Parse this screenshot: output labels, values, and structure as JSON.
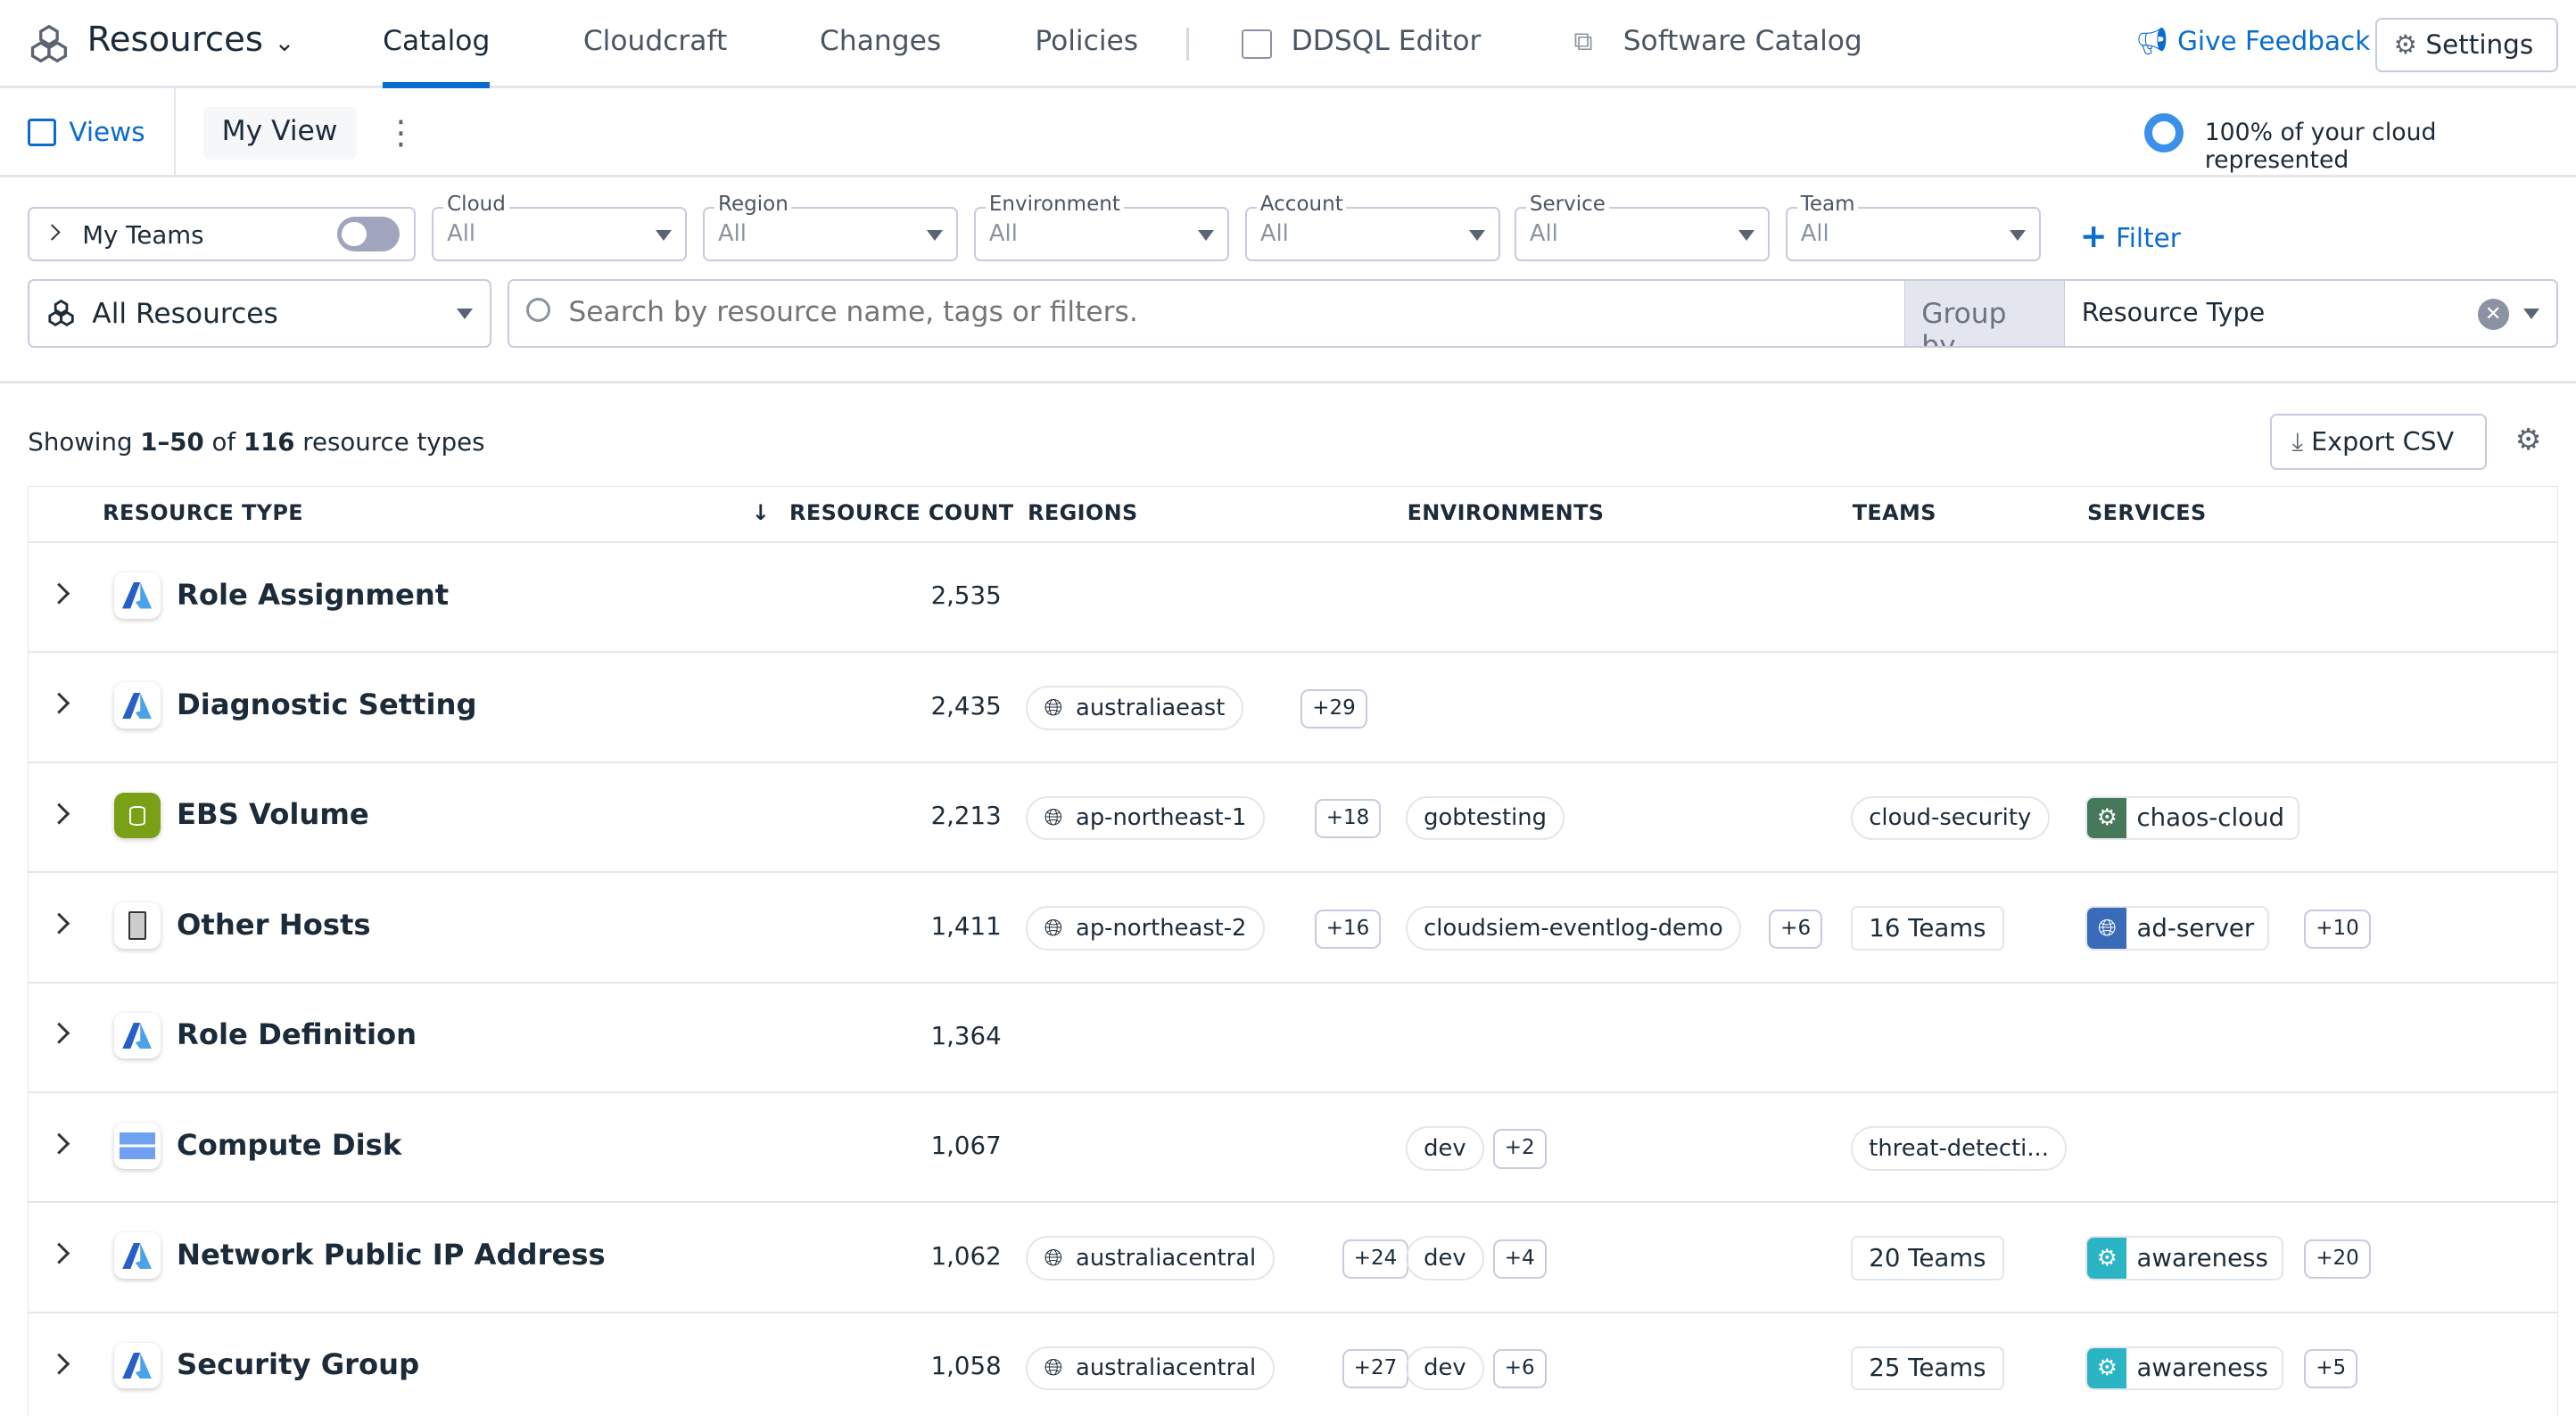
{
  "nav": {
    "product": "Resources",
    "tabs": [
      "Catalog",
      "Cloudcraft",
      "Changes",
      "Policies",
      "DDSQL Editor",
      "Software Catalog"
    ],
    "active_tab": "Catalog",
    "feedback": "Give Feedback",
    "settings": "Settings",
    "accent": "#0a6ccf"
  },
  "views": {
    "views_label": "Views",
    "current_view": "My View",
    "coverage": "100% of your cloud represented"
  },
  "filters": {
    "my_teams": "My Teams",
    "my_teams_on": false,
    "selects": [
      {
        "label": "Cloud",
        "value": "All"
      },
      {
        "label": "Region",
        "value": "All"
      },
      {
        "label": "Environment",
        "value": "All"
      },
      {
        "label": "Account",
        "value": "All"
      },
      {
        "label": "Service",
        "value": "All"
      },
      {
        "label": "Team",
        "value": "All"
      }
    ],
    "add_filter": "Filter"
  },
  "search": {
    "scope": "All Resources",
    "placeholder": "Search by resource name, tags or filters.",
    "group_by_label": "Group by",
    "group_by_value": "Resource Type"
  },
  "summary": {
    "prefix": "Showing ",
    "range": "1–50",
    "of": " of ",
    "total": "116",
    "suffix": " resource types",
    "export": "Export CSV"
  },
  "table": {
    "columns": [
      "RESOURCE TYPE",
      "RESOURCE COUNT",
      "REGIONS",
      "ENVIRONMENTS",
      "TEAMS",
      "SERVICES"
    ],
    "sort": {
      "column": "RESOURCE COUNT",
      "direction": "desc"
    },
    "rows": [
      {
        "icon": "azure",
        "name": "Role Assignment",
        "count": "2,535"
      },
      {
        "icon": "azure",
        "name": "Diagnostic Setting",
        "count": "2,435",
        "region": "australiaeast",
        "region_more": "+29"
      },
      {
        "icon": "ebs",
        "name": "EBS Volume",
        "count": "2,213",
        "region": "ap-northeast-1",
        "region_more": "+18",
        "env": "gobtesting",
        "team": "cloud-security",
        "service": "chaos-cloud",
        "service_icon": "gears",
        "service_color": "#45795a"
      },
      {
        "icon": "host",
        "name": "Other Hosts",
        "count": "1,411",
        "region": "ap-northeast-2",
        "region_more": "+16",
        "env": "cloudsiem-eventlog-demo",
        "env_more": "+6",
        "team": "16 Teams",
        "team_box": true,
        "service": "ad-server",
        "service_icon": "globe",
        "service_color": "#3a6bb8",
        "service_more": "+10"
      },
      {
        "icon": "azure",
        "name": "Role Definition",
        "count": "1,364"
      },
      {
        "icon": "disk",
        "name": "Compute Disk",
        "count": "1,067",
        "env": "dev",
        "env_more": "+2",
        "team": "threat-detecti..."
      },
      {
        "icon": "azure",
        "name": "Network Public IP Address",
        "count": "1,062",
        "region": "australiacentral",
        "region_more": "+24",
        "env": "dev",
        "env_more": "+4",
        "team": "20 Teams",
        "team_box": true,
        "service": "awareness",
        "service_icon": "gears",
        "service_color": "#2bb5c4",
        "service_more": "+20"
      },
      {
        "icon": "azure",
        "name": "Security Group",
        "count": "1,058",
        "region": "australiacentral",
        "region_more": "+27",
        "env": "dev",
        "env_more": "+6",
        "team": "25 Teams",
        "team_box": true,
        "service": "awareness",
        "service_icon": "gears",
        "service_color": "#2bb5c4",
        "service_more": "+5"
      }
    ]
  }
}
